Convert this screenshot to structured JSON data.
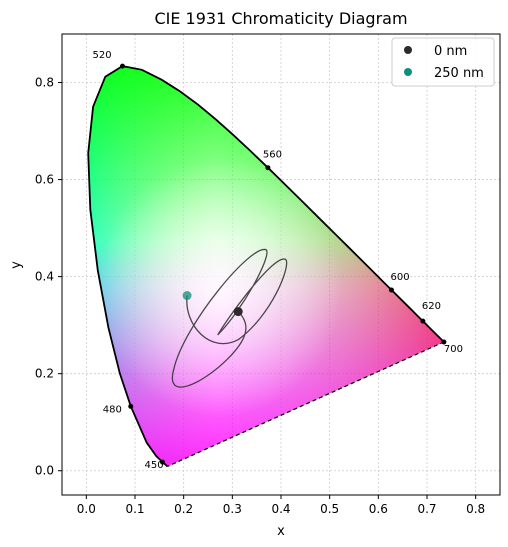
{
  "chart_data": {
    "type": "scatter",
    "title": "CIE 1931 Chromaticity Diagram",
    "xlabel": "x",
    "ylabel": "y",
    "xlim": [
      -0.05,
      0.85
    ],
    "ylim": [
      -0.05,
      0.9
    ],
    "xticks": [
      "0.0",
      "0.1",
      "0.2",
      "0.3",
      "0.4",
      "0.5",
      "0.6",
      "0.7",
      "0.8"
    ],
    "yticks": [
      "0.0",
      "0.2",
      "0.4",
      "0.6",
      "0.8"
    ],
    "grid": true,
    "legend_position": "top-right",
    "series": [
      {
        "name": "0 nm",
        "color": "#2b2b2b",
        "x": [
          0.312
        ],
        "y": [
          0.328
        ]
      },
      {
        "name": "250 nm",
        "color": "#0f8f78",
        "x": [
          0.207
        ],
        "y": [
          0.361
        ]
      }
    ],
    "spectral_locus": [
      [
        0.1666,
        0.0089
      ],
      [
        0.144,
        0.0297
      ],
      [
        0.1241,
        0.0578
      ],
      [
        0.0913,
        0.1327
      ],
      [
        0.0687,
        0.2007
      ],
      [
        0.0454,
        0.295
      ],
      [
        0.0235,
        0.4127
      ],
      [
        0.0082,
        0.5384
      ],
      [
        0.0039,
        0.6548
      ],
      [
        0.0139,
        0.7502
      ],
      [
        0.0389,
        0.812
      ],
      [
        0.0743,
        0.8338
      ],
      [
        0.1142,
        0.8262
      ],
      [
        0.1547,
        0.8059
      ],
      [
        0.1929,
        0.7816
      ],
      [
        0.2296,
        0.7543
      ],
      [
        0.2658,
        0.7243
      ],
      [
        0.3016,
        0.6923
      ],
      [
        0.3373,
        0.6589
      ],
      [
        0.3731,
        0.6245
      ],
      [
        0.4087,
        0.5896
      ],
      [
        0.4441,
        0.5547
      ],
      [
        0.4788,
        0.5202
      ],
      [
        0.5125,
        0.4866
      ],
      [
        0.5448,
        0.4544
      ],
      [
        0.5752,
        0.4242
      ],
      [
        0.6029,
        0.3965
      ],
      [
        0.627,
        0.3725
      ],
      [
        0.6482,
        0.3514
      ],
      [
        0.6658,
        0.334
      ],
      [
        0.6801,
        0.3197
      ],
      [
        0.6915,
        0.3083
      ],
      [
        0.7006,
        0.2993
      ],
      [
        0.7079,
        0.292
      ],
      [
        0.714,
        0.2859
      ],
      [
        0.719,
        0.2809
      ],
      [
        0.723,
        0.277
      ],
      [
        0.726,
        0.274
      ],
      [
        0.7283,
        0.2717
      ],
      [
        0.7347,
        0.2653
      ]
    ],
    "wavelength_labels": [
      {
        "text": "450",
        "x": 0.1566,
        "y": 0.0177
      },
      {
        "text": "480",
        "x": 0.0913,
        "y": 0.1327
      },
      {
        "text": "520",
        "x": 0.0743,
        "y": 0.8338
      },
      {
        "text": "560",
        "x": 0.3731,
        "y": 0.6245
      },
      {
        "text": "600",
        "x": 0.627,
        "y": 0.3725
      },
      {
        "text": "620",
        "x": 0.6915,
        "y": 0.3083
      },
      {
        "text": "700",
        "x": 0.7347,
        "y": 0.2653
      }
    ],
    "trajectory_color": "#2b2b2b"
  }
}
